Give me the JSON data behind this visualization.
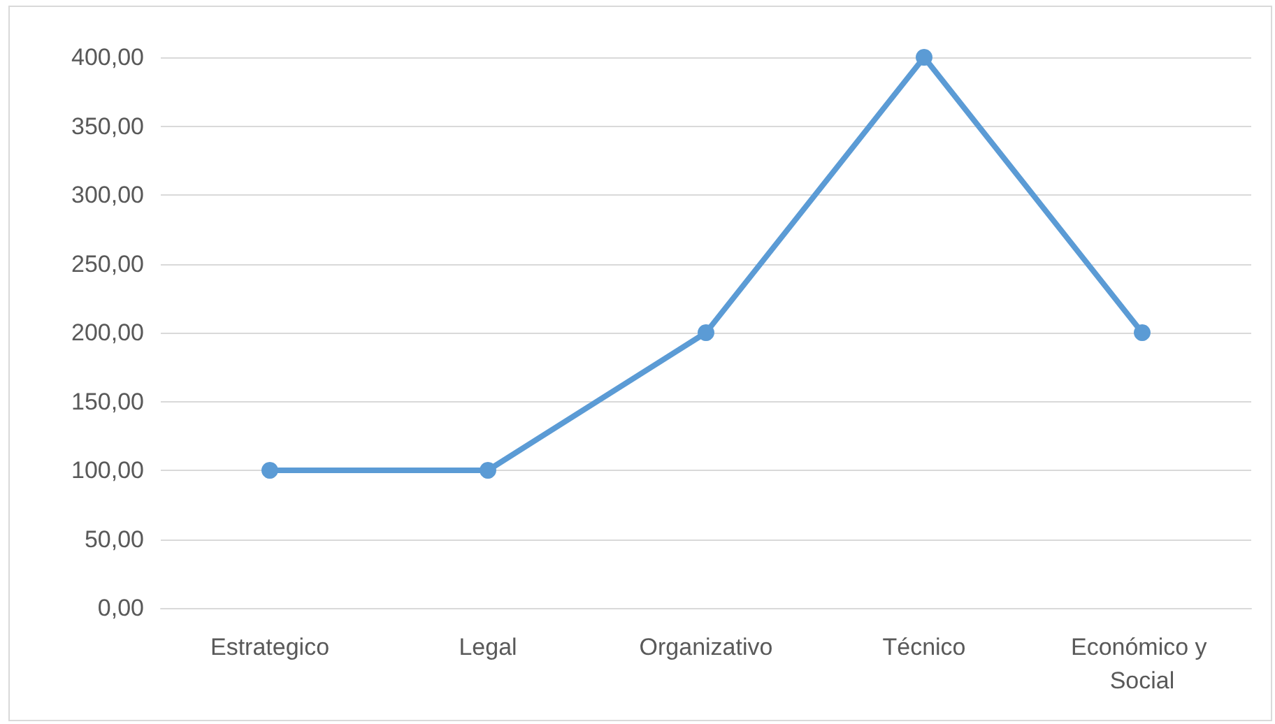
{
  "chart_data": {
    "type": "line",
    "categories": [
      "Estrategico",
      "Legal",
      "Organizativo",
      "Técnico",
      "Económico y Social"
    ],
    "values": [
      100,
      100,
      200,
      400,
      200
    ],
    "color": "#5b9bd5",
    "marker": "circle",
    "line_style": "solid",
    "ylim": [
      0,
      400
    ],
    "yticks": [
      {
        "value": 0,
        "label": "0,00"
      },
      {
        "value": 50,
        "label": "50,00"
      },
      {
        "value": 100,
        "label": "100,00"
      },
      {
        "value": 150,
        "label": "150,00"
      },
      {
        "value": 200,
        "label": "200,00"
      },
      {
        "value": 250,
        "label": "250,00"
      },
      {
        "value": 300,
        "label": "300,00"
      },
      {
        "value": 350,
        "label": "350,00"
      },
      {
        "value": 400,
        "label": "400,00"
      }
    ],
    "grid": "y"
  }
}
